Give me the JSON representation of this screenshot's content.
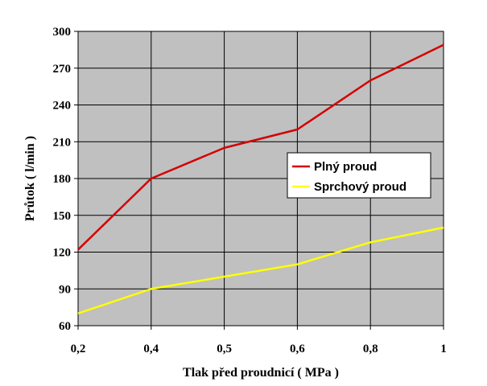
{
  "chart_data": {
    "type": "line",
    "categories": [
      "0,2",
      "0,4",
      "0,5",
      "0,6",
      "0,8",
      "1"
    ],
    "series": [
      {
        "name": "Plný proud",
        "values": [
          122,
          180,
          205,
          220,
          260,
          289
        ],
        "color": "#d40000"
      },
      {
        "name": "Sprchový proud",
        "values": [
          70,
          90,
          100,
          110,
          128,
          140
        ],
        "color": "#ffff00"
      }
    ],
    "xlabel": "Tlak před proudnicí ( MPa )",
    "ylabel": "Průtok ( l/min )",
    "ylim": [
      60,
      300
    ],
    "yticks": [
      60,
      90,
      120,
      150,
      180,
      210,
      240,
      270,
      300
    ],
    "grid": true,
    "plot_background": "#c0c0c0",
    "legend_position": "right"
  }
}
